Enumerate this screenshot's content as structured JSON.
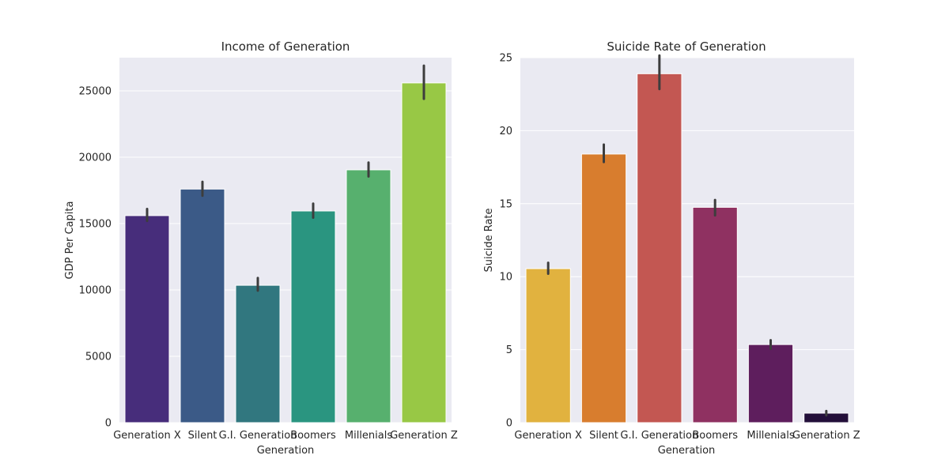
{
  "chart_data": [
    {
      "type": "bar",
      "title": "Income of Generation",
      "xlabel": "Generation",
      "ylabel": "GDP Per Capita",
      "ylim": [
        0,
        27500
      ],
      "yticks": [
        0,
        5000,
        10000,
        15000,
        20000,
        25000
      ],
      "grid": true,
      "categories": [
        "Generation X",
        "Silent",
        "G.I. Generation",
        "Boomers",
        "Millenials",
        "Generation Z"
      ],
      "values": [
        15600,
        17600,
        10350,
        15950,
        19050,
        25600
      ],
      "error": [
        [
          15200,
          16100
        ],
        [
          17100,
          18150
        ],
        [
          9950,
          10900
        ],
        [
          15450,
          16500
        ],
        [
          18550,
          19600
        ],
        [
          24400,
          26900
        ]
      ],
      "colors": [
        "#472d7b",
        "#3b5a87",
        "#31777f",
        "#2a9580",
        "#57b06e",
        "#98c845"
      ]
    },
    {
      "type": "bar",
      "title": "Suicide Rate of Generation",
      "xlabel": "Generation",
      "ylabel": "Suicide Rate",
      "ylim": [
        0,
        25.0
      ],
      "yticks": [
        0,
        5,
        10,
        15,
        20,
        25
      ],
      "grid": true,
      "categories": [
        "Generation X",
        "Silent",
        "G.I. Generation",
        "Boomers",
        "Millenials",
        "Generation Z"
      ],
      "values": [
        10.55,
        18.4,
        23.9,
        14.75,
        5.35,
        0.65
      ],
      "error": [
        [
          10.2,
          10.95
        ],
        [
          17.85,
          19.05
        ],
        [
          22.85,
          25.15
        ],
        [
          14.2,
          15.25
        ],
        [
          5.05,
          5.65
        ],
        [
          0.5,
          0.8
        ]
      ],
      "colors": [
        "#e1b23f",
        "#d87d2e",
        "#c35752",
        "#8f3161",
        "#5e1e5d",
        "#230f3a"
      ]
    }
  ]
}
